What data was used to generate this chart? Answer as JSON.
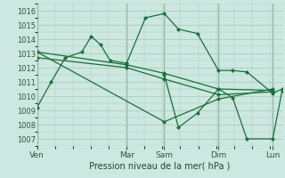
{
  "background_color": "#cce8e0",
  "grid_color": "#aaccbb",
  "line_color": "#1a6e3a",
  "marker_color": "#1a6e3a",
  "xlabel": "Pression niveau de la mer( hPa )",
  "ylim": [
    1006.5,
    1016.5
  ],
  "yticks": [
    1007,
    1008,
    1009,
    1010,
    1011,
    1012,
    1013,
    1014,
    1015,
    1016
  ],
  "xtick_labels": [
    "Ven",
    "Mar",
    "Sam",
    "Dim",
    "Lun"
  ],
  "xtick_positions": [
    0.0,
    0.38,
    0.54,
    0.77,
    1.0
  ],
  "xlim": [
    0,
    1.04
  ],
  "series": [
    {
      "x": [
        0.0,
        0.06,
        0.12,
        0.19,
        0.23,
        0.27,
        0.31,
        0.38,
        0.46,
        0.54,
        0.6,
        0.68,
        0.77,
        0.83,
        0.89,
        1.0,
        1.04
      ],
      "y": [
        1009.2,
        1011.0,
        1012.7,
        1013.1,
        1014.2,
        1013.6,
        1012.5,
        1012.3,
        1015.5,
        1015.8,
        1014.7,
        1014.4,
        1011.8,
        1011.8,
        1011.7,
        1010.2,
        1010.5
      ]
    },
    {
      "x": [
        0.0,
        0.38,
        0.54,
        0.77,
        1.0
      ],
      "y": [
        1013.1,
        1012.2,
        1011.6,
        1010.5,
        1010.4
      ]
    },
    {
      "x": [
        0.0,
        0.38,
        0.54,
        0.77,
        1.0
      ],
      "y": [
        1012.7,
        1012.0,
        1011.2,
        1010.1,
        1010.3
      ]
    },
    {
      "x": [
        0.0,
        0.54,
        0.77,
        1.0
      ],
      "y": [
        1013.1,
        1008.2,
        1009.8,
        1010.5
      ]
    },
    {
      "x": [
        0.54,
        0.6,
        0.68,
        0.77,
        0.83,
        0.89,
        1.0,
        1.04
      ],
      "y": [
        1011.5,
        1007.8,
        1008.8,
        1010.5,
        1009.9,
        1007.0,
        1007.0,
        1010.4
      ]
    }
  ]
}
